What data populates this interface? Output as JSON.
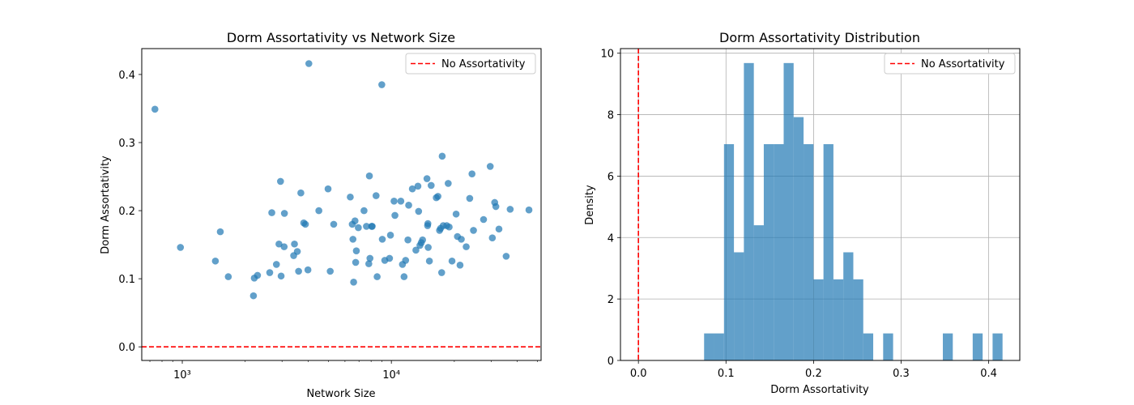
{
  "chart_data": [
    {
      "type": "scatter",
      "title": "Dorm Assortativity vs Network Size",
      "xlabel": "Network Size",
      "ylabel": "Dorm Assortativity",
      "x_scale": "log",
      "xlim": [
        640,
        52000
      ],
      "ylim": [
        -0.02,
        0.438
      ],
      "x_ticks": [
        1000,
        10000
      ],
      "x_tick_labels": [
        "10³",
        "10⁴"
      ],
      "y_ticks": [
        0.0,
        0.1,
        0.2,
        0.3,
        0.4
      ],
      "y_tick_labels": [
        "0.0",
        "0.1",
        "0.2",
        "0.3",
        "0.4"
      ],
      "grid": false,
      "legend": {
        "placement": "top-right",
        "entries": [
          "No Assortativity"
        ]
      },
      "reference_line": {
        "y": 0,
        "label": "No Assortativity",
        "color": "#ff0000",
        "style": "dashed"
      },
      "point_color": "#1f77b4",
      "points": [
        {
          "x": 740,
          "y": 0.349
        },
        {
          "x": 980,
          "y": 0.146
        },
        {
          "x": 1440,
          "y": 0.126
        },
        {
          "x": 1520,
          "y": 0.169
        },
        {
          "x": 1660,
          "y": 0.103
        },
        {
          "x": 2190,
          "y": 0.075
        },
        {
          "x": 2210,
          "y": 0.101
        },
        {
          "x": 2290,
          "y": 0.105
        },
        {
          "x": 2620,
          "y": 0.109
        },
        {
          "x": 2680,
          "y": 0.197
        },
        {
          "x": 2820,
          "y": 0.121
        },
        {
          "x": 2900,
          "y": 0.151
        },
        {
          "x": 2950,
          "y": 0.243
        },
        {
          "x": 2970,
          "y": 0.104
        },
        {
          "x": 3070,
          "y": 0.147
        },
        {
          "x": 3080,
          "y": 0.196
        },
        {
          "x": 3410,
          "y": 0.134
        },
        {
          "x": 3440,
          "y": 0.151
        },
        {
          "x": 3550,
          "y": 0.14
        },
        {
          "x": 3600,
          "y": 0.111
        },
        {
          "x": 3690,
          "y": 0.226
        },
        {
          "x": 3810,
          "y": 0.182
        },
        {
          "x": 3880,
          "y": 0.18
        },
        {
          "x": 3990,
          "y": 0.113
        },
        {
          "x": 4030,
          "y": 0.416
        },
        {
          "x": 4500,
          "y": 0.2
        },
        {
          "x": 4980,
          "y": 0.232
        },
        {
          "x": 5100,
          "y": 0.111
        },
        {
          "x": 5300,
          "y": 0.18
        },
        {
          "x": 6360,
          "y": 0.22
        },
        {
          "x": 6500,
          "y": 0.18
        },
        {
          "x": 6550,
          "y": 0.158
        },
        {
          "x": 6600,
          "y": 0.095
        },
        {
          "x": 6700,
          "y": 0.185
        },
        {
          "x": 6750,
          "y": 0.124
        },
        {
          "x": 6800,
          "y": 0.141
        },
        {
          "x": 6950,
          "y": 0.175
        },
        {
          "x": 7400,
          "y": 0.2
        },
        {
          "x": 7600,
          "y": 0.177
        },
        {
          "x": 7800,
          "y": 0.122
        },
        {
          "x": 7850,
          "y": 0.251
        },
        {
          "x": 7900,
          "y": 0.13
        },
        {
          "x": 8050,
          "y": 0.177
        },
        {
          "x": 8100,
          "y": 0.177
        },
        {
          "x": 8450,
          "y": 0.222
        },
        {
          "x": 8550,
          "y": 0.103
        },
        {
          "x": 9000,
          "y": 0.385
        },
        {
          "x": 9050,
          "y": 0.158
        },
        {
          "x": 9300,
          "y": 0.127
        },
        {
          "x": 9800,
          "y": 0.13
        },
        {
          "x": 9900,
          "y": 0.164
        },
        {
          "x": 10300,
          "y": 0.214
        },
        {
          "x": 10400,
          "y": 0.193
        },
        {
          "x": 11100,
          "y": 0.214
        },
        {
          "x": 11300,
          "y": 0.121
        },
        {
          "x": 11500,
          "y": 0.103
        },
        {
          "x": 11700,
          "y": 0.127
        },
        {
          "x": 12000,
          "y": 0.157
        },
        {
          "x": 12100,
          "y": 0.208
        },
        {
          "x": 12600,
          "y": 0.232
        },
        {
          "x": 13100,
          "y": 0.142
        },
        {
          "x": 13400,
          "y": 0.236
        },
        {
          "x": 13500,
          "y": 0.199
        },
        {
          "x": 13700,
          "y": 0.149
        },
        {
          "x": 13900,
          "y": 0.153
        },
        {
          "x": 14100,
          "y": 0.157
        },
        {
          "x": 14800,
          "y": 0.247
        },
        {
          "x": 14900,
          "y": 0.178
        },
        {
          "x": 14950,
          "y": 0.181
        },
        {
          "x": 15000,
          "y": 0.146
        },
        {
          "x": 15200,
          "y": 0.126
        },
        {
          "x": 15500,
          "y": 0.237
        },
        {
          "x": 16400,
          "y": 0.219
        },
        {
          "x": 16700,
          "y": 0.221
        },
        {
          "x": 17000,
          "y": 0.171
        },
        {
          "x": 17200,
          "y": 0.174
        },
        {
          "x": 17400,
          "y": 0.109
        },
        {
          "x": 17500,
          "y": 0.28
        },
        {
          "x": 17700,
          "y": 0.178
        },
        {
          "x": 18400,
          "y": 0.178
        },
        {
          "x": 18700,
          "y": 0.24
        },
        {
          "x": 18900,
          "y": 0.176
        },
        {
          "x": 19500,
          "y": 0.126
        },
        {
          "x": 20400,
          "y": 0.195
        },
        {
          "x": 20700,
          "y": 0.162
        },
        {
          "x": 21300,
          "y": 0.12
        },
        {
          "x": 21600,
          "y": 0.158
        },
        {
          "x": 22800,
          "y": 0.147
        },
        {
          "x": 23700,
          "y": 0.218
        },
        {
          "x": 24300,
          "y": 0.254
        },
        {
          "x": 24700,
          "y": 0.171
        },
        {
          "x": 27600,
          "y": 0.187
        },
        {
          "x": 29700,
          "y": 0.265
        },
        {
          "x": 30400,
          "y": 0.16
        },
        {
          "x": 31200,
          "y": 0.212
        },
        {
          "x": 31600,
          "y": 0.206
        },
        {
          "x": 32700,
          "y": 0.173
        },
        {
          "x": 35400,
          "y": 0.133
        },
        {
          "x": 37000,
          "y": 0.202
        },
        {
          "x": 45500,
          "y": 0.201
        }
      ]
    },
    {
      "type": "bar",
      "subtype": "histogram",
      "title": "Dorm Assortativity Distribution",
      "xlabel": "Dorm Assortativity",
      "ylabel": "Density",
      "xlim": [
        -0.0205,
        0.4355
      ],
      "ylim": [
        0,
        10.15
      ],
      "x_ticks": [
        0.0,
        0.1,
        0.2,
        0.3,
        0.4
      ],
      "x_tick_labels": [
        "0.0",
        "0.1",
        "0.2",
        "0.3",
        "0.4"
      ],
      "y_ticks": [
        0,
        2,
        4,
        6,
        8,
        10
      ],
      "y_tick_labels": [
        "0",
        "2",
        "4",
        "6",
        "8",
        "10"
      ],
      "grid": true,
      "legend": {
        "placement": "top-right",
        "entries": [
          "No Assortativity"
        ]
      },
      "reference_line": {
        "x": 0,
        "label": "No Assortativity",
        "color": "#ff0000",
        "style": "dashed"
      },
      "bar_color": "#1f77b4",
      "bin_edges": [
        0.075,
        0.08636,
        0.09772,
        0.10908,
        0.12044,
        0.1318,
        0.14316,
        0.15452,
        0.16588,
        0.17724,
        0.1886,
        0.19996,
        0.21132,
        0.22268,
        0.23404,
        0.2454,
        0.25676,
        0.26812,
        0.27948,
        0.29084,
        0.3022,
        0.31356,
        0.32492,
        0.33628,
        0.34764,
        0.359,
        0.37036,
        0.38172,
        0.39308,
        0.40444,
        0.4158
      ],
      "densities": [
        0.88,
        0.88,
        7.04,
        3.52,
        9.68,
        4.4,
        7.04,
        7.04,
        9.68,
        7.92,
        7.04,
        2.64,
        7.04,
        2.64,
        3.52,
        2.64,
        0.88,
        0,
        0.88,
        0,
        0,
        0,
        0,
        0,
        0.88,
        0,
        0,
        0.88,
        0,
        0.88
      ]
    }
  ]
}
